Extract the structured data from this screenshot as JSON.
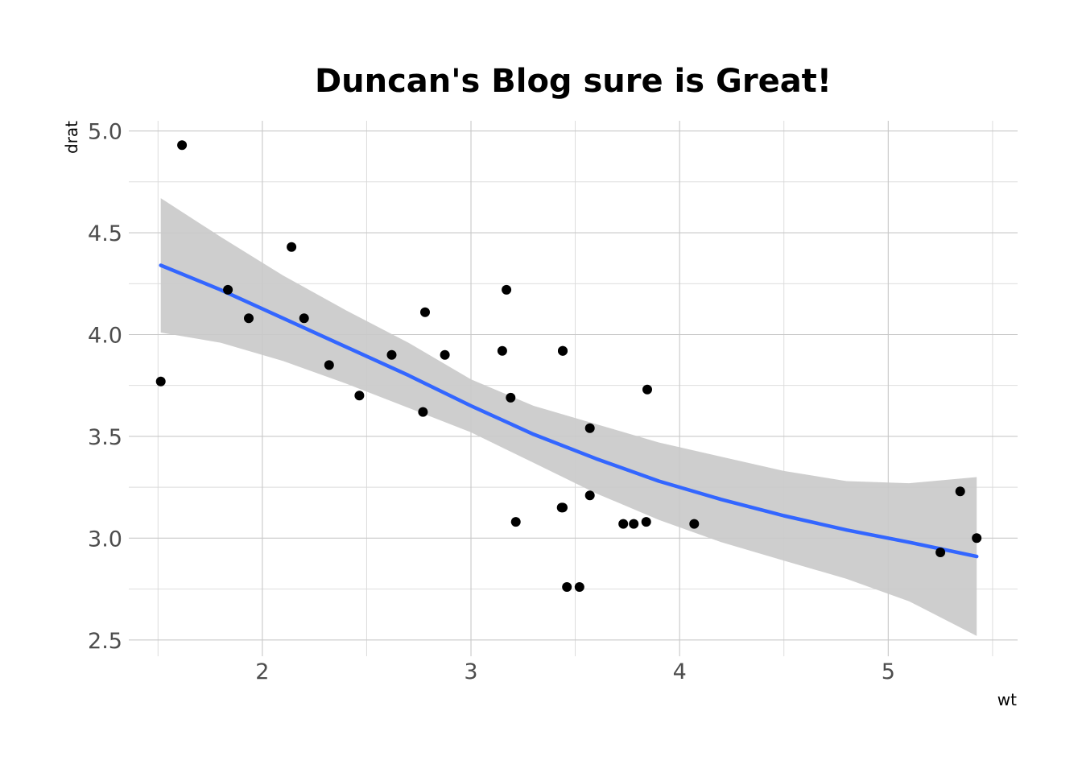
{
  "chart_data": {
    "type": "scatter",
    "title": "Duncan's Blog sure is Great!",
    "xlabel": "wt",
    "ylabel": "drat",
    "xlim": [
      1.36,
      5.62
    ],
    "ylim": [
      2.42,
      5.05
    ],
    "x_ticks": [
      2,
      3,
      4,
      5
    ],
    "y_ticks": [
      2.5,
      3.0,
      3.5,
      4.0,
      4.5,
      5.0
    ],
    "x_tick_labels": [
      "2",
      "3",
      "4",
      "5"
    ],
    "y_tick_labels": [
      "2.5",
      "3.0",
      "3.5",
      "4.0",
      "4.5",
      "5.0"
    ],
    "grid": true,
    "legend": "none",
    "colors": {
      "points": "#000000",
      "smooth_line": "#3366ff",
      "ribbon": "#c9c9c9"
    },
    "points": [
      {
        "x": 1.513,
        "y": 3.77
      },
      {
        "x": 1.615,
        "y": 4.93
      },
      {
        "x": 1.835,
        "y": 4.22
      },
      {
        "x": 1.935,
        "y": 4.08
      },
      {
        "x": 2.14,
        "y": 4.43
      },
      {
        "x": 2.2,
        "y": 4.08
      },
      {
        "x": 2.32,
        "y": 3.85
      },
      {
        "x": 2.465,
        "y": 3.7
      },
      {
        "x": 2.62,
        "y": 3.9
      },
      {
        "x": 2.77,
        "y": 3.62
      },
      {
        "x": 2.78,
        "y": 4.11
      },
      {
        "x": 2.875,
        "y": 3.9
      },
      {
        "x": 3.15,
        "y": 3.92
      },
      {
        "x": 3.17,
        "y": 4.22
      },
      {
        "x": 3.19,
        "y": 3.69
      },
      {
        "x": 3.215,
        "y": 3.08
      },
      {
        "x": 3.435,
        "y": 3.15
      },
      {
        "x": 3.44,
        "y": 3.15
      },
      {
        "x": 3.44,
        "y": 3.92
      },
      {
        "x": 3.44,
        "y": 3.92
      },
      {
        "x": 3.46,
        "y": 2.76
      },
      {
        "x": 3.52,
        "y": 2.76
      },
      {
        "x": 3.57,
        "y": 3.21
      },
      {
        "x": 3.57,
        "y": 3.54
      },
      {
        "x": 3.73,
        "y": 3.07
      },
      {
        "x": 3.78,
        "y": 3.07
      },
      {
        "x": 3.84,
        "y": 3.08
      },
      {
        "x": 3.845,
        "y": 3.73
      },
      {
        "x": 4.07,
        "y": 3.07
      },
      {
        "x": 5.25,
        "y": 2.93
      },
      {
        "x": 5.345,
        "y": 3.23
      },
      {
        "x": 5.424,
        "y": 3.0
      }
    ],
    "smooth": {
      "method": "loess",
      "x": [
        1.513,
        1.8,
        2.1,
        2.4,
        2.7,
        3.0,
        3.3,
        3.6,
        3.9,
        4.2,
        4.5,
        4.8,
        5.1,
        5.424
      ],
      "y": [
        4.34,
        4.22,
        4.08,
        3.94,
        3.8,
        3.65,
        3.51,
        3.39,
        3.28,
        3.19,
        3.11,
        3.04,
        2.98,
        2.91
      ],
      "lower": [
        4.01,
        3.96,
        3.87,
        3.76,
        3.64,
        3.52,
        3.37,
        3.22,
        3.09,
        2.98,
        2.89,
        2.8,
        2.69,
        2.52
      ],
      "upper": [
        4.67,
        4.48,
        4.29,
        4.12,
        3.96,
        3.78,
        3.65,
        3.56,
        3.47,
        3.4,
        3.33,
        3.28,
        3.27,
        3.3
      ]
    }
  }
}
